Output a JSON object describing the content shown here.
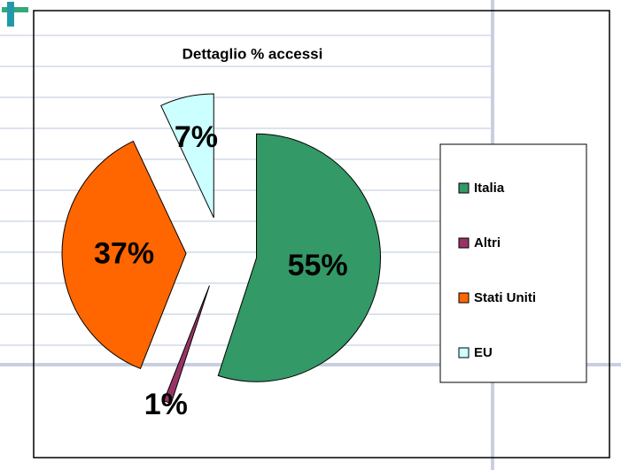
{
  "chart_data": {
    "type": "pie",
    "title": "Dettaglio % accessi",
    "categories": [
      "Italia",
      "Altri",
      "Stati Uniti",
      "EU"
    ],
    "values": [
      55,
      1,
      37,
      7
    ],
    "value_labels": [
      "55%",
      "1%",
      "37%",
      "7%"
    ],
    "colors": [
      "#339966",
      "#993366",
      "#ff6600",
      "#ccffff"
    ],
    "exploded": true,
    "legend": "right"
  }
}
